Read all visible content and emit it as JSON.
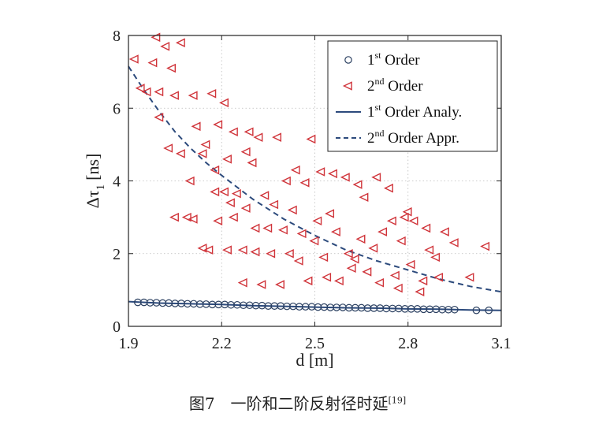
{
  "chart_data": {
    "type": "scatter",
    "xlabel": "d [m]",
    "ylabel": "Δτ",
    "ylabel_sub": "1",
    "ylabel_unit": "[ns]",
    "xlim": [
      1.9,
      3.1
    ],
    "ylim": [
      0,
      8
    ],
    "xticks": [
      1.9,
      2.2,
      2.5,
      2.8,
      3.1
    ],
    "xtick_labels": [
      "1.9",
      "2.2",
      "2.5",
      "2.8",
      "3.1"
    ],
    "yticks": [
      0,
      2,
      4,
      6,
      8
    ],
    "ytick_labels": [
      "0",
      "2",
      "4",
      "6",
      "8"
    ],
    "grid": true,
    "legend_position": "top-right",
    "colors": {
      "first": "#2c4a7c",
      "second": "#d0343a",
      "grid": "#bbbbbb"
    },
    "series": [
      {
        "name": "1st Order",
        "marker": "circle",
        "x": [
          1.93,
          1.95,
          1.97,
          1.99,
          2.01,
          2.03,
          2.05,
          2.07,
          2.09,
          2.11,
          2.13,
          2.15,
          2.17,
          2.19,
          2.21,
          2.23,
          2.25,
          2.27,
          2.29,
          2.31,
          2.33,
          2.35,
          2.37,
          2.39,
          2.41,
          2.43,
          2.45,
          2.47,
          2.49,
          2.51,
          2.53,
          2.55,
          2.57,
          2.59,
          2.61,
          2.63,
          2.65,
          2.67,
          2.69,
          2.71,
          2.73,
          2.75,
          2.77,
          2.79,
          2.81,
          2.83,
          2.85,
          2.87,
          2.89,
          2.91,
          2.93,
          2.95,
          3.02,
          3.06
        ],
        "y": [
          0.66,
          0.66,
          0.65,
          0.65,
          0.64,
          0.64,
          0.63,
          0.63,
          0.62,
          0.62,
          0.61,
          0.61,
          0.6,
          0.6,
          0.6,
          0.59,
          0.59,
          0.58,
          0.58,
          0.57,
          0.57,
          0.56,
          0.56,
          0.56,
          0.55,
          0.55,
          0.54,
          0.54,
          0.54,
          0.53,
          0.53,
          0.52,
          0.52,
          0.52,
          0.51,
          0.51,
          0.51,
          0.5,
          0.5,
          0.5,
          0.49,
          0.49,
          0.49,
          0.48,
          0.48,
          0.48,
          0.47,
          0.47,
          0.47,
          0.46,
          0.46,
          0.46,
          0.44,
          0.44
        ]
      },
      {
        "name": "2nd Order",
        "marker": "triangle-left",
        "x": [
          1.92,
          1.94,
          1.96,
          1.98,
          1.99,
          2.0,
          2.0,
          2.02,
          2.03,
          2.04,
          2.05,
          2.05,
          2.07,
          2.07,
          2.09,
          2.1,
          2.11,
          2.11,
          2.12,
          2.14,
          2.14,
          2.15,
          2.16,
          2.17,
          2.18,
          2.18,
          2.19,
          2.19,
          2.21,
          2.21,
          2.22,
          2.22,
          2.23,
          2.24,
          2.24,
          2.25,
          2.27,
          2.27,
          2.28,
          2.28,
          2.29,
          2.3,
          2.31,
          2.31,
          2.32,
          2.33,
          2.34,
          2.35,
          2.36,
          2.37,
          2.38,
          2.39,
          2.4,
          2.41,
          2.42,
          2.43,
          2.44,
          2.45,
          2.46,
          2.47,
          2.48,
          2.49,
          2.5,
          2.51,
          2.52,
          2.53,
          2.54,
          2.55,
          2.56,
          2.57,
          2.58,
          2.59,
          2.6,
          2.61,
          2.62,
          2.63,
          2.64,
          2.65,
          2.66,
          2.67,
          2.69,
          2.7,
          2.71,
          2.72,
          2.74,
          2.75,
          2.76,
          2.77,
          2.78,
          2.79,
          2.8,
          2.81,
          2.82,
          2.84,
          2.85,
          2.86,
          2.87,
          2.89,
          2.9,
          2.92,
          2.95,
          3.0,
          3.05
        ],
        "y": [
          7.35,
          6.55,
          6.45,
          7.25,
          7.95,
          5.75,
          6.45,
          7.7,
          4.9,
          7.1,
          6.35,
          3.0,
          7.8,
          4.75,
          3.0,
          4.0,
          6.35,
          2.95,
          5.5,
          4.75,
          2.15,
          5.0,
          2.1,
          6.4,
          4.3,
          3.7,
          5.55,
          2.9,
          3.7,
          6.15,
          4.6,
          2.1,
          3.4,
          3.0,
          5.35,
          3.65,
          2.1,
          1.2,
          4.8,
          3.25,
          5.35,
          4.5,
          2.05,
          2.7,
          5.2,
          1.15,
          3.6,
          2.7,
          2.0,
          3.35,
          5.2,
          1.15,
          2.65,
          4.0,
          2.0,
          3.2,
          4.3,
          1.8,
          2.55,
          3.95,
          1.25,
          5.15,
          2.35,
          2.9,
          4.25,
          1.9,
          1.35,
          3.1,
          4.2,
          2.6,
          1.25,
          5.0,
          4.1,
          2.0,
          1.6,
          1.85,
          3.9,
          2.4,
          3.55,
          1.5,
          2.15,
          4.1,
          1.2,
          2.6,
          3.8,
          2.9,
          1.4,
          1.05,
          2.35,
          3.0,
          3.15,
          1.7,
          2.9,
          0.95,
          1.25,
          2.7,
          2.1,
          1.9,
          1.35,
          2.6,
          2.3,
          1.35,
          2.2
        ]
      },
      {
        "name": "1st Order Analy.",
        "line": "solid",
        "x": [
          1.9,
          2.0,
          2.1,
          2.2,
          2.3,
          2.4,
          2.5,
          2.6,
          2.7,
          2.8,
          2.9,
          3.0,
          3.1
        ],
        "y": [
          0.68,
          0.64,
          0.62,
          0.6,
          0.57,
          0.55,
          0.53,
          0.51,
          0.5,
          0.48,
          0.47,
          0.45,
          0.44
        ]
      },
      {
        "name": "2nd Order Appr.",
        "line": "dashed",
        "x": [
          1.9,
          1.95,
          2.0,
          2.05,
          2.1,
          2.15,
          2.2,
          2.3,
          2.4,
          2.5,
          2.6,
          2.7,
          2.8,
          2.9,
          3.0,
          3.1
        ],
        "y": [
          7.15,
          6.5,
          5.9,
          5.35,
          4.9,
          4.5,
          4.15,
          3.5,
          2.95,
          2.5,
          2.1,
          1.8,
          1.55,
          1.3,
          1.1,
          0.95
        ]
      }
    ]
  },
  "caption": {
    "text": "图7　一阶和二阶反射径时延",
    "ref": "[19]"
  }
}
